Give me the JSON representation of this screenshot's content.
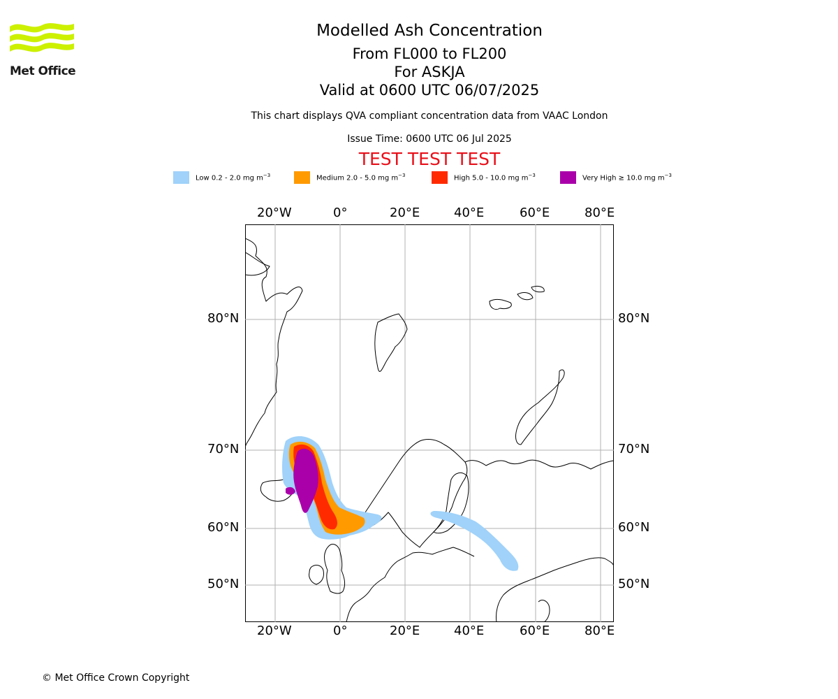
{
  "logo": {
    "text": "Met Office",
    "color": "#ccf000"
  },
  "header": {
    "title": "Modelled Ash Concentration",
    "levels": "From FL000 to FL200",
    "volcano": "For ASKJA",
    "valid": "Valid at 0600 UTC 06/07/2025",
    "description": "This chart displays QVA compliant concentration data from VAAC London",
    "issue_time": "Issue Time: 0600 UTC 06 Jul 2025",
    "test_banner": "TEST TEST TEST"
  },
  "legend": [
    {
      "label": "Low 0.2 - 2.0 mg m",
      "color": "#a0d2fa"
    },
    {
      "label": "Medium 2.0 - 5.0 mg m",
      "color": "#ff9a00"
    },
    {
      "label": "High 5.0 - 10.0 mg m",
      "color": "#ff2a00"
    },
    {
      "label": "Very High ≥ 10.0 mg m",
      "color": "#aa00aa"
    }
  ],
  "legend_exponent": "−3",
  "axes": {
    "lon_labels": [
      "20°W",
      "0°",
      "20°E",
      "40°E",
      "60°E",
      "80°E"
    ],
    "lat_labels": [
      "80°N",
      "70°N",
      "60°N",
      "50°N"
    ]
  },
  "footer": {
    "copyright": "© Met Office Crown Copyright"
  }
}
